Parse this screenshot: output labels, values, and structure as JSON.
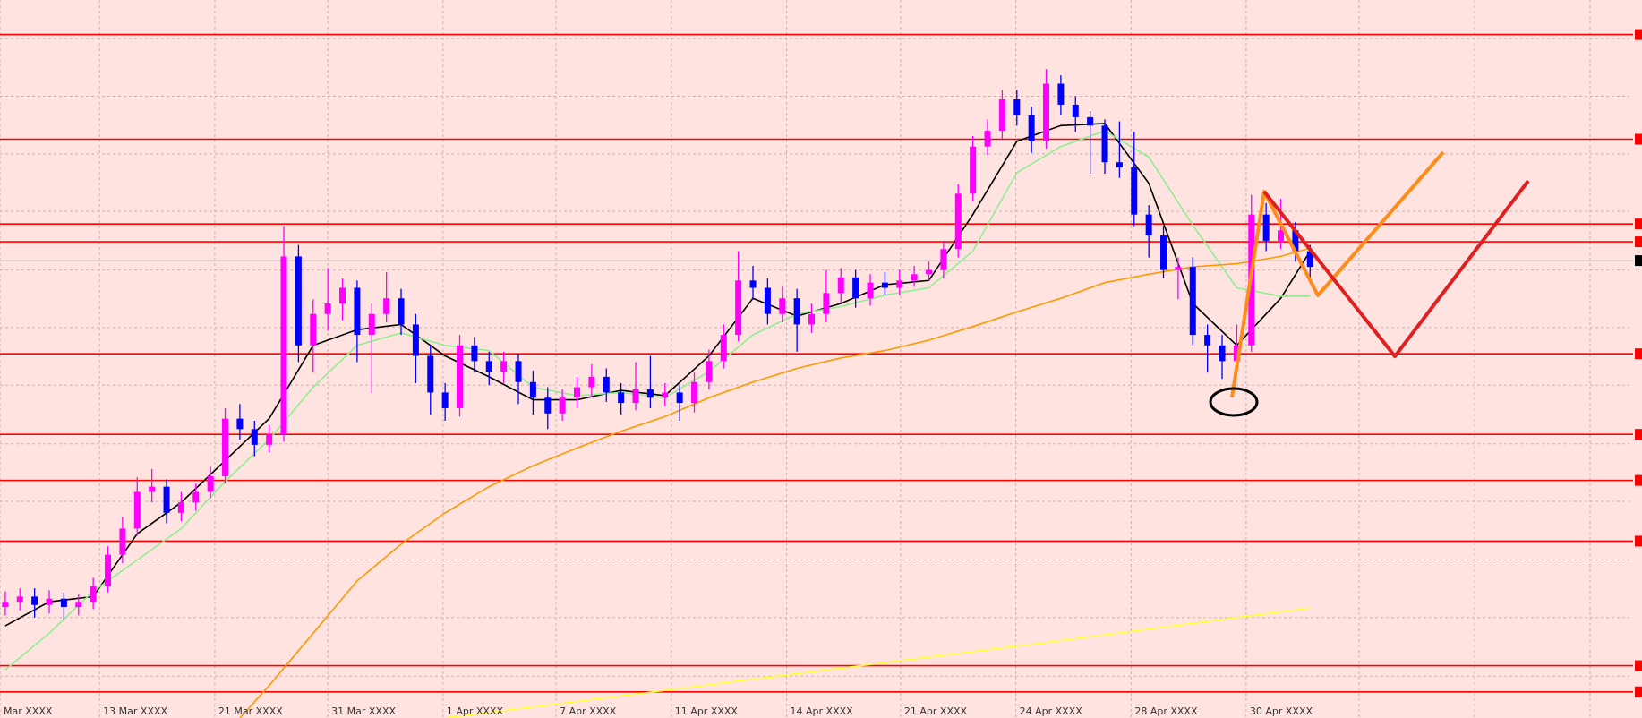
{
  "chart_data": {
    "type": "candlestick",
    "xlim": [
      -0.36,
      111.64
    ],
    "ylim": [
      0,
      686
    ],
    "grid": true,
    "up_color": "#ff00ff",
    "down_color": "#0000ff",
    "xticks": [
      {
        "value": -0.36,
        "label": "Mar XXXX"
      },
      {
        "value": 6.43,
        "label": "13 Mar XXXX"
      },
      {
        "value": 14.29,
        "label": "21 Mar XXXX"
      },
      {
        "value": 22,
        "label": "31 Mar XXXX"
      },
      {
        "value": 29.86,
        "label": "1 Apr XXXX"
      },
      {
        "value": 37.57,
        "label": "7 Apr XXXX"
      },
      {
        "value": 45.43,
        "label": "11 Apr XXXX"
      },
      {
        "value": 53.29,
        "label": "14 Apr XXXX"
      },
      {
        "value": 61.07,
        "label": "21 Apr XXXX"
      },
      {
        "value": 68.93,
        "label": "24 Apr XXXX"
      },
      {
        "value": 76.79,
        "label": "28 Apr XXXX"
      },
      {
        "value": 84.64,
        "label": "30 Apr XXXX"
      }
    ],
    "yticks": [
      649,
      594,
      539,
      484,
      428,
      373,
      318,
      262,
      207,
      151,
      96,
      40
    ],
    "levels": [
      653,
      553,
      472,
      455,
      348,
      271,
      227,
      169,
      50,
      25
    ],
    "level_color": "#ff0000",
    "price_line": 437,
    "price_line_color": "#b8b8b8",
    "open": [
      106,
      111,
      116,
      108,
      114,
      106,
      111,
      126,
      156,
      181,
      216,
      221,
      196,
      206,
      216,
      231,
      286,
      276,
      261,
      271,
      441,
      356,
      386,
      396,
      411,
      366,
      386,
      401,
      376,
      346,
      311,
      296,
      356,
      341,
      331,
      341,
      321,
      306,
      291,
      306,
      316,
      326,
      311,
      301,
      314,
      306,
      311,
      301,
      321,
      341,
      366,
      418,
      411,
      386,
      401,
      376,
      386,
      406,
      421,
      401,
      416,
      411,
      418,
      424,
      428,
      448,
      501,
      546,
      561,
      591,
      576,
      551,
      606,
      586,
      574,
      566,
      531,
      526,
      481,
      461,
      428,
      431,
      366,
      356,
      341,
      356,
      481,
      456,
      466,
      446
    ],
    "high": [
      121,
      124,
      124,
      122,
      120,
      118,
      134,
      164,
      192,
      230,
      238,
      228,
      216,
      224,
      240,
      296,
      300,
      284,
      280,
      470,
      452,
      400,
      430,
      420,
      418,
      396,
      426,
      410,
      386,
      356,
      320,
      366,
      364,
      350,
      350,
      348,
      332,
      316,
      314,
      326,
      338,
      334,
      320,
      340,
      346,
      320,
      318,
      330,
      352,
      376,
      446,
      432,
      420,
      412,
      410,
      396,
      428,
      430,
      428,
      424,
      426,
      428,
      432,
      436,
      456,
      510,
      556,
      572,
      600,
      600,
      584,
      620,
      614,
      594,
      580,
      572,
      570,
      560,
      490,
      470,
      440,
      440,
      376,
      366,
      376,
      500,
      492,
      496,
      474,
      452
    ],
    "low": [
      98,
      103,
      96,
      100,
      94,
      98,
      104,
      120,
      148,
      174,
      206,
      186,
      188,
      198,
      210,
      224,
      266,
      250,
      254,
      264,
      340,
      330,
      370,
      380,
      340,
      310,
      378,
      366,
      320,
      290,
      284,
      288,
      330,
      318,
      320,
      300,
      290,
      276,
      284,
      296,
      306,
      302,
      290,
      294,
      296,
      298,
      284,
      292,
      314,
      334,
      360,
      400,
      376,
      378,
      350,
      368,
      378,
      396,
      392,
      394,
      404,
      404,
      412,
      418,
      420,
      440,
      494,
      538,
      552,
      566,
      540,
      544,
      576,
      560,
      520,
      520,
      516,
      470,
      440,
      420,
      400,
      356,
      330,
      324,
      330,
      350,
      446,
      448,
      436,
      420
    ],
    "close": [
      111,
      116,
      108,
      114,
      106,
      111,
      126,
      156,
      181,
      216,
      221,
      196,
      206,
      216,
      231,
      286,
      276,
      261,
      271,
      441,
      356,
      386,
      396,
      411,
      366,
      386,
      401,
      376,
      346,
      311,
      296,
      356,
      341,
      331,
      341,
      321,
      306,
      291,
      306,
      316,
      326,
      311,
      301,
      314,
      306,
      311,
      301,
      321,
      341,
      366,
      418,
      411,
      386,
      401,
      376,
      386,
      406,
      421,
      401,
      416,
      411,
      418,
      424,
      428,
      448,
      501,
      546,
      561,
      591,
      576,
      551,
      606,
      586,
      574,
      566,
      531,
      526,
      481,
      461,
      428,
      431,
      366,
      356,
      341,
      356,
      481,
      456,
      466,
      446,
      431
    ],
    "overlays": [
      {
        "color": "#000000",
        "x": [
          0,
          3,
          6,
          9,
          12,
          15,
          18,
          21,
          24,
          27,
          30,
          33,
          36,
          39,
          42,
          45,
          48,
          51,
          54,
          57,
          60,
          63,
          66,
          69,
          72,
          75,
          78,
          81,
          84,
          87,
          89
        ],
        "values": [
          88,
          111,
          116,
          176,
          206,
          246,
          286,
          356,
          371,
          376,
          346,
          326,
          304,
          304,
          313,
          308,
          346,
          401,
          384,
          396,
          414,
          418,
          481,
          551,
          566,
          568,
          511,
          396,
          356,
          401,
          446
        ]
      },
      {
        "color": "#90ee90",
        "x": [
          0,
          3,
          6,
          9,
          12,
          15,
          18,
          21,
          24,
          27,
          30,
          33,
          36,
          39,
          42,
          45,
          48,
          51,
          54,
          57,
          60,
          63,
          66,
          69,
          72,
          75,
          78,
          81,
          84,
          87,
          89
        ],
        "values": [
          46,
          81,
          121,
          151,
          181,
          226,
          266,
          316,
          356,
          368,
          356,
          351,
          316,
          308,
          311,
          306,
          331,
          366,
          386,
          393,
          404,
          411,
          446,
          521,
          546,
          561,
          536,
          471,
          411,
          403,
          403
        ]
      },
      {
        "color": "#ff9900",
        "x": [
          16,
          18,
          21,
          24,
          27,
          30,
          33,
          36,
          39,
          42,
          45,
          48,
          51,
          54,
          57,
          60,
          63,
          66,
          69,
          72,
          75,
          78,
          81,
          84,
          87,
          89
        ],
        "values": [
          0,
          31,
          81,
          131,
          166,
          196,
          221,
          241,
          258,
          274,
          288,
          306,
          321,
          334,
          344,
          351,
          361,
          374,
          388,
          401,
          416,
          424,
          431,
          434,
          441,
          449
        ]
      },
      {
        "color": "#ffff33",
        "x": [
          30,
          51,
          72,
          89
        ],
        "values": [
          0,
          37,
          74,
          105
        ]
      }
    ]
  }
}
